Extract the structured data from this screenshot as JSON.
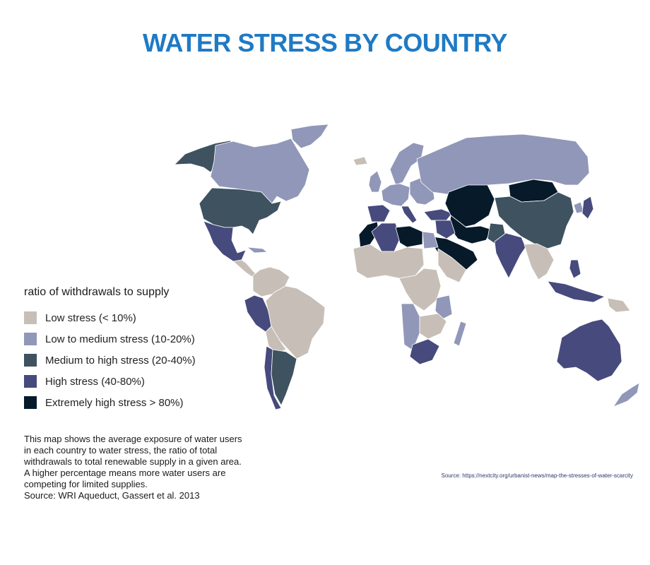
{
  "title": "WATER STRESS BY COUNTRY",
  "legend": {
    "title": "ratio of withdrawals to supply",
    "items": [
      {
        "label": "Low stress (< 10%)",
        "color": "#c7bfb7"
      },
      {
        "label": "Low to medium stress (10-20%)",
        "color": "#9197b8"
      },
      {
        "label": "Medium to high stress (20-40%)",
        "color": "#3e5260"
      },
      {
        "label": "High stress (40-80%)",
        "color": "#464a7c"
      },
      {
        "label": "Extremely high stress > 80%)",
        "color": "#061a2a"
      }
    ]
  },
  "description": [
    "This map shows the average exposure of water users",
    "in each country to water stress, the ratio of total",
    "withdrawals to total renewable supply in a given area.",
    "A higher percentage means more water users are",
    "competing for limited supplies.",
    "Source: WRI Aqueduct, Gassert et al. 2013"
  ],
  "source_url": "Source: https://nextcity.org/urbanist-news/map-the-stresses-of-water-scarcity",
  "regions": [
    {
      "name": "alaska",
      "category": 2
    },
    {
      "name": "canada",
      "category": 1
    },
    {
      "name": "greenland",
      "category": 1
    },
    {
      "name": "united-states",
      "category": 2
    },
    {
      "name": "mexico",
      "category": 3
    },
    {
      "name": "central-america",
      "category": 0
    },
    {
      "name": "caribbean",
      "category": 1
    },
    {
      "name": "colombia-venezuela",
      "category": 0
    },
    {
      "name": "peru",
      "category": 3
    },
    {
      "name": "brazil",
      "category": 0
    },
    {
      "name": "bolivia-paraguay",
      "category": 0
    },
    {
      "name": "chile",
      "category": 3
    },
    {
      "name": "argentina",
      "category": 2
    },
    {
      "name": "iceland",
      "category": 0
    },
    {
      "name": "uk-ireland",
      "category": 1
    },
    {
      "name": "scandinavia",
      "category": 1
    },
    {
      "name": "western-europe",
      "category": 1
    },
    {
      "name": "iberia",
      "category": 3
    },
    {
      "name": "italy",
      "category": 3
    },
    {
      "name": "eastern-europe",
      "category": 1
    },
    {
      "name": "turkey",
      "category": 3
    },
    {
      "name": "russia",
      "category": 1
    },
    {
      "name": "kazakhstan-central-asia",
      "category": 4
    },
    {
      "name": "mongolia",
      "category": 4
    },
    {
      "name": "china",
      "category": 2
    },
    {
      "name": "korea",
      "category": 1
    },
    {
      "name": "japan",
      "category": 3
    },
    {
      "name": "iran-afghanistan",
      "category": 4
    },
    {
      "name": "arabia",
      "category": 4
    },
    {
      "name": "iraq-syria",
      "category": 3
    },
    {
      "name": "pakistan",
      "category": 2
    },
    {
      "name": "india",
      "category": 3
    },
    {
      "name": "southeast-asia",
      "category": 0
    },
    {
      "name": "indonesia",
      "category": 3
    },
    {
      "name": "papua",
      "category": 0
    },
    {
      "name": "philippines",
      "category": 3
    },
    {
      "name": "australia",
      "category": 3
    },
    {
      "name": "new-zealand",
      "category": 1
    },
    {
      "name": "morocco",
      "category": 4
    },
    {
      "name": "algeria",
      "category": 3
    },
    {
      "name": "libya",
      "category": 4
    },
    {
      "name": "egypt",
      "category": 1
    },
    {
      "name": "west-africa",
      "category": 0
    },
    {
      "name": "central-africa",
      "category": 0
    },
    {
      "name": "horn-of-africa",
      "category": 0
    },
    {
      "name": "east-africa",
      "category": 1
    },
    {
      "name": "angola-namibia",
      "category": 1
    },
    {
      "name": "southern-africa-inland",
      "category": 0
    },
    {
      "name": "south-africa",
      "category": 3
    },
    {
      "name": "madagascar",
      "category": 1
    }
  ]
}
